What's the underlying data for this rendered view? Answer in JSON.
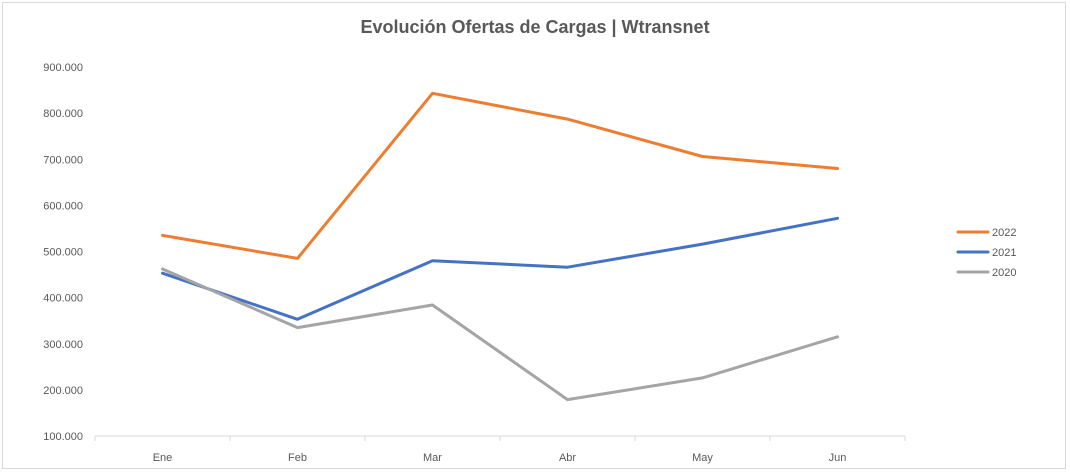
{
  "chart_data": {
    "type": "line",
    "title": "Evolución Ofertas de Cargas | Wtransnet",
    "xlabel": "",
    "ylabel": "",
    "categories": [
      "Ene",
      "Feb",
      "Mar",
      "Abr",
      "May",
      "Jun"
    ],
    "ylim": [
      100000,
      900000
    ],
    "yticks": [
      100000,
      200000,
      300000,
      400000,
      500000,
      600000,
      700000,
      800000,
      900000
    ],
    "ytick_labels": [
      "100.000",
      "200.000",
      "300.000",
      "400.000",
      "500.000",
      "600.000",
      "700.000",
      "800.000",
      "900.000"
    ],
    "grid": false,
    "legend_position": "right",
    "series": [
      {
        "name": "2022",
        "color": "#ED7D31",
        "values": [
          535000,
          485000,
          843000,
          787000,
          706000,
          680000
        ]
      },
      {
        "name": "2021",
        "color": "#4472C4",
        "values": [
          453000,
          353000,
          480000,
          466000,
          516000,
          572000
        ]
      },
      {
        "name": "2020",
        "color": "#A5A5A5",
        "values": [
          462000,
          335000,
          384000,
          179000,
          226000,
          315000
        ]
      }
    ]
  }
}
